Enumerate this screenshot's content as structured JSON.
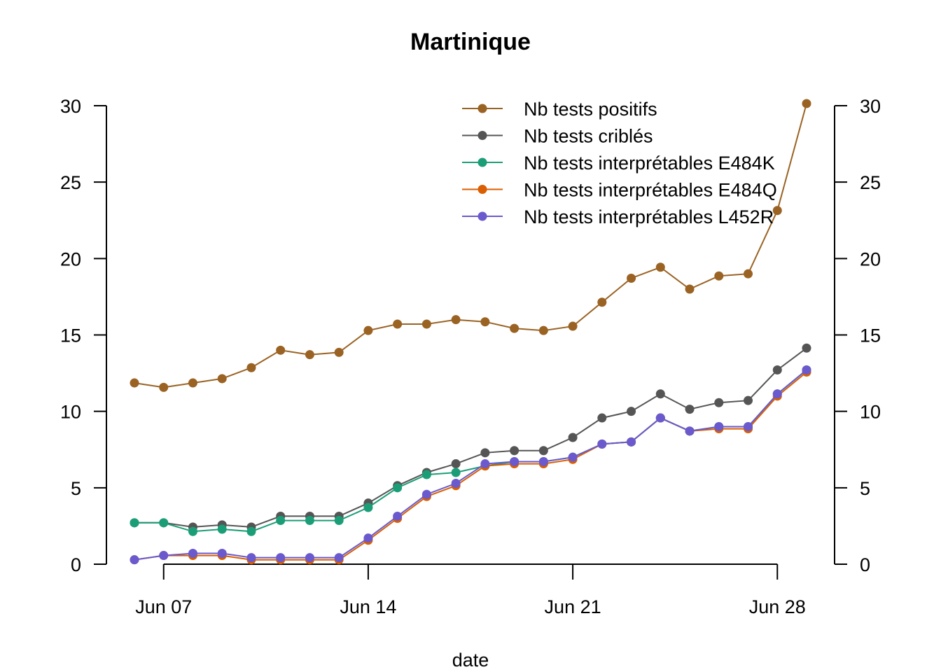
{
  "chart_data": {
    "type": "line",
    "title": "Martinique",
    "xlabel": "date",
    "ylabel": "",
    "ylim": [
      0,
      30
    ],
    "y_ticks": [
      0,
      5,
      10,
      15,
      20,
      25,
      30
    ],
    "x_ticks": [
      {
        "date": "2021-06-07",
        "label": "Jun 07"
      },
      {
        "date": "2021-06-14",
        "label": "Jun 14"
      },
      {
        "date": "2021-06-21",
        "label": "Jun 21"
      },
      {
        "date": "2021-06-28",
        "label": "Jun 28"
      }
    ],
    "x": [
      "2021-06-06",
      "2021-06-07",
      "2021-06-08",
      "2021-06-09",
      "2021-06-10",
      "2021-06-11",
      "2021-06-12",
      "2021-06-13",
      "2021-06-14",
      "2021-06-15",
      "2021-06-16",
      "2021-06-17",
      "2021-06-18",
      "2021-06-19",
      "2021-06-20",
      "2021-06-21",
      "2021-06-22",
      "2021-06-23",
      "2021-06-24",
      "2021-06-25",
      "2021-06-26",
      "2021-06-27",
      "2021-06-28",
      "2021-06-29"
    ],
    "legend_position": "top-right",
    "grid": false,
    "series": [
      {
        "name": "Nb tests positifs",
        "color": "#9A6324",
        "values": [
          11.86,
          11.57,
          11.86,
          12.14,
          12.86,
          14.0,
          13.71,
          13.86,
          15.29,
          15.71,
          15.71,
          16.0,
          15.86,
          15.43,
          15.29,
          15.57,
          17.14,
          18.71,
          19.43,
          18.0,
          18.86,
          19.0,
          23.14,
          30.14
        ]
      },
      {
        "name": "Nb tests criblés",
        "color": "#555555",
        "values": [
          2.71,
          2.71,
          2.43,
          2.57,
          2.43,
          3.14,
          3.14,
          3.14,
          4.0,
          5.14,
          6.0,
          6.57,
          7.29,
          7.43,
          7.43,
          8.29,
          9.57,
          10.0,
          11.14,
          10.14,
          10.57,
          10.71,
          12.71,
          14.14
        ]
      },
      {
        "name": "Nb tests interprétables E484K",
        "color": "#1B9E77",
        "values": [
          2.71,
          2.71,
          2.14,
          2.29,
          2.14,
          2.86,
          2.86,
          2.86,
          3.71,
          5.0,
          5.86,
          6.0,
          6.43,
          6.71,
          6.71,
          7.0,
          7.86,
          8.0,
          9.57,
          8.71,
          9.0,
          9.0,
          11.14,
          12.71
        ]
      },
      {
        "name": "Nb tests interprétables E484Q",
        "color": "#D95F02",
        "values": [
          0.29,
          0.57,
          0.57,
          0.57,
          0.29,
          0.29,
          0.29,
          0.29,
          1.57,
          3.0,
          4.43,
          5.14,
          6.43,
          6.57,
          6.57,
          6.86,
          7.86,
          8.0,
          9.57,
          8.71,
          8.86,
          8.86,
          11.0,
          12.57
        ]
      },
      {
        "name": "Nb tests interprétables L452R",
        "color": "#6A5ACD",
        "values": [
          0.29,
          0.57,
          0.71,
          0.71,
          0.43,
          0.43,
          0.43,
          0.43,
          1.71,
          3.14,
          4.57,
          5.29,
          6.57,
          6.71,
          6.71,
          7.0,
          7.86,
          8.0,
          9.57,
          8.71,
          9.0,
          9.0,
          11.14,
          12.71
        ]
      }
    ]
  }
}
